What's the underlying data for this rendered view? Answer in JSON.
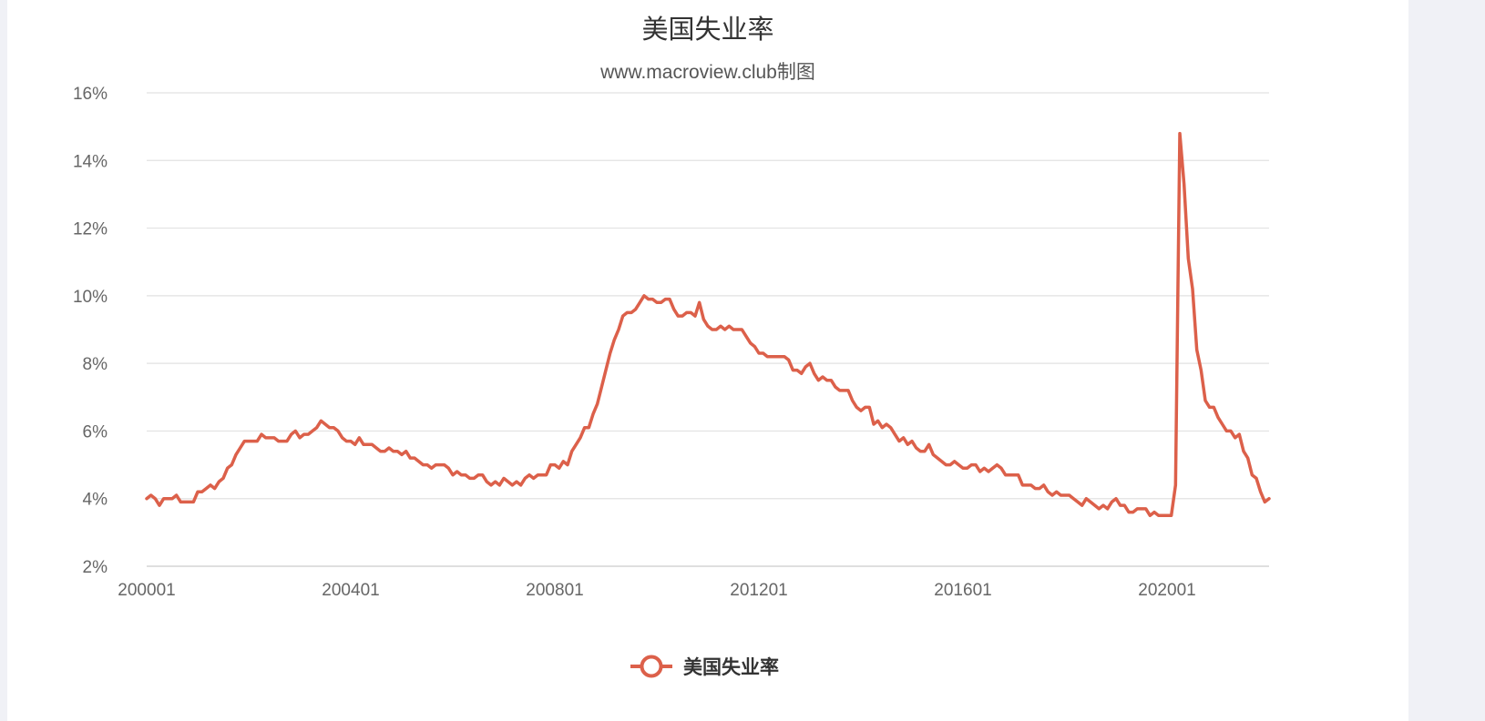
{
  "chart_data": {
    "type": "line",
    "title": "美国失业率",
    "subtitle": "www.macroview.club制图",
    "xlabel": "",
    "ylabel": "",
    "ylim": [
      2,
      16
    ],
    "yticks": [
      "16%",
      "14%",
      "12%",
      "10%",
      "8%",
      "6%",
      "4%",
      "2%"
    ],
    "ytick_values": [
      16,
      14,
      12,
      10,
      8,
      6,
      4,
      2
    ],
    "xticks": [
      "200001",
      "200401",
      "200801",
      "201201",
      "201601",
      "202001"
    ],
    "x_start": "200001",
    "x_end": "202111",
    "grid": true,
    "legend_position": "bottom-center",
    "series": [
      {
        "name": "美国失业率",
        "color": "#dc604a",
        "values": [
          4.0,
          4.1,
          4.0,
          3.8,
          4.0,
          4.0,
          4.0,
          4.1,
          3.9,
          3.9,
          3.9,
          3.9,
          4.2,
          4.2,
          4.3,
          4.4,
          4.3,
          4.5,
          4.6,
          4.9,
          5.0,
          5.3,
          5.5,
          5.7,
          5.7,
          5.7,
          5.7,
          5.9,
          5.8,
          5.8,
          5.8,
          5.7,
          5.7,
          5.7,
          5.9,
          6.0,
          5.8,
          5.9,
          5.9,
          6.0,
          6.1,
          6.3,
          6.2,
          6.1,
          6.1,
          6.0,
          5.8,
          5.7,
          5.7,
          5.6,
          5.8,
          5.6,
          5.6,
          5.6,
          5.5,
          5.4,
          5.4,
          5.5,
          5.4,
          5.4,
          5.3,
          5.4,
          5.2,
          5.2,
          5.1,
          5.0,
          5.0,
          4.9,
          5.0,
          5.0,
          5.0,
          4.9,
          4.7,
          4.8,
          4.7,
          4.7,
          4.6,
          4.6,
          4.7,
          4.7,
          4.5,
          4.4,
          4.5,
          4.4,
          4.6,
          4.5,
          4.4,
          4.5,
          4.4,
          4.6,
          4.7,
          4.6,
          4.7,
          4.7,
          4.7,
          5.0,
          5.0,
          4.9,
          5.1,
          5.0,
          5.4,
          5.6,
          5.8,
          6.1,
          6.1,
          6.5,
          6.8,
          7.3,
          7.8,
          8.3,
          8.7,
          9.0,
          9.4,
          9.5,
          9.5,
          9.6,
          9.8,
          10.0,
          9.9,
          9.9,
          9.8,
          9.8,
          9.9,
          9.9,
          9.6,
          9.4,
          9.4,
          9.5,
          9.5,
          9.4,
          9.8,
          9.3,
          9.1,
          9.0,
          9.0,
          9.1,
          9.0,
          9.1,
          9.0,
          9.0,
          9.0,
          8.8,
          8.6,
          8.5,
          8.3,
          8.3,
          8.2,
          8.2,
          8.2,
          8.2,
          8.2,
          8.1,
          7.8,
          7.8,
          7.7,
          7.9,
          8.0,
          7.7,
          7.5,
          7.6,
          7.5,
          7.5,
          7.3,
          7.2,
          7.2,
          7.2,
          6.9,
          6.7,
          6.6,
          6.7,
          6.7,
          6.2,
          6.3,
          6.1,
          6.2,
          6.1,
          5.9,
          5.7,
          5.8,
          5.6,
          5.7,
          5.5,
          5.4,
          5.4,
          5.6,
          5.3,
          5.2,
          5.1,
          5.0,
          5.0,
          5.1,
          5.0,
          4.9,
          4.9,
          5.0,
          5.0,
          4.8,
          4.9,
          4.8,
          4.9,
          5.0,
          4.9,
          4.7,
          4.7,
          4.7,
          4.7,
          4.4,
          4.4,
          4.4,
          4.3,
          4.3,
          4.4,
          4.2,
          4.1,
          4.2,
          4.1,
          4.1,
          4.1,
          4.0,
          3.9,
          3.8,
          4.0,
          3.9,
          3.8,
          3.7,
          3.8,
          3.7,
          3.9,
          4.0,
          3.8,
          3.8,
          3.6,
          3.6,
          3.7,
          3.7,
          3.7,
          3.5,
          3.6,
          3.5,
          3.5,
          3.5,
          3.5,
          4.4,
          14.8,
          13.3,
          11.1,
          10.2,
          8.4,
          7.8,
          6.9,
          6.7,
          6.7,
          6.4,
          6.2,
          6.0,
          6.0,
          5.8,
          5.9,
          5.4,
          5.2,
          4.7,
          4.6,
          4.2,
          3.9,
          4.0
        ]
      }
    ]
  }
}
